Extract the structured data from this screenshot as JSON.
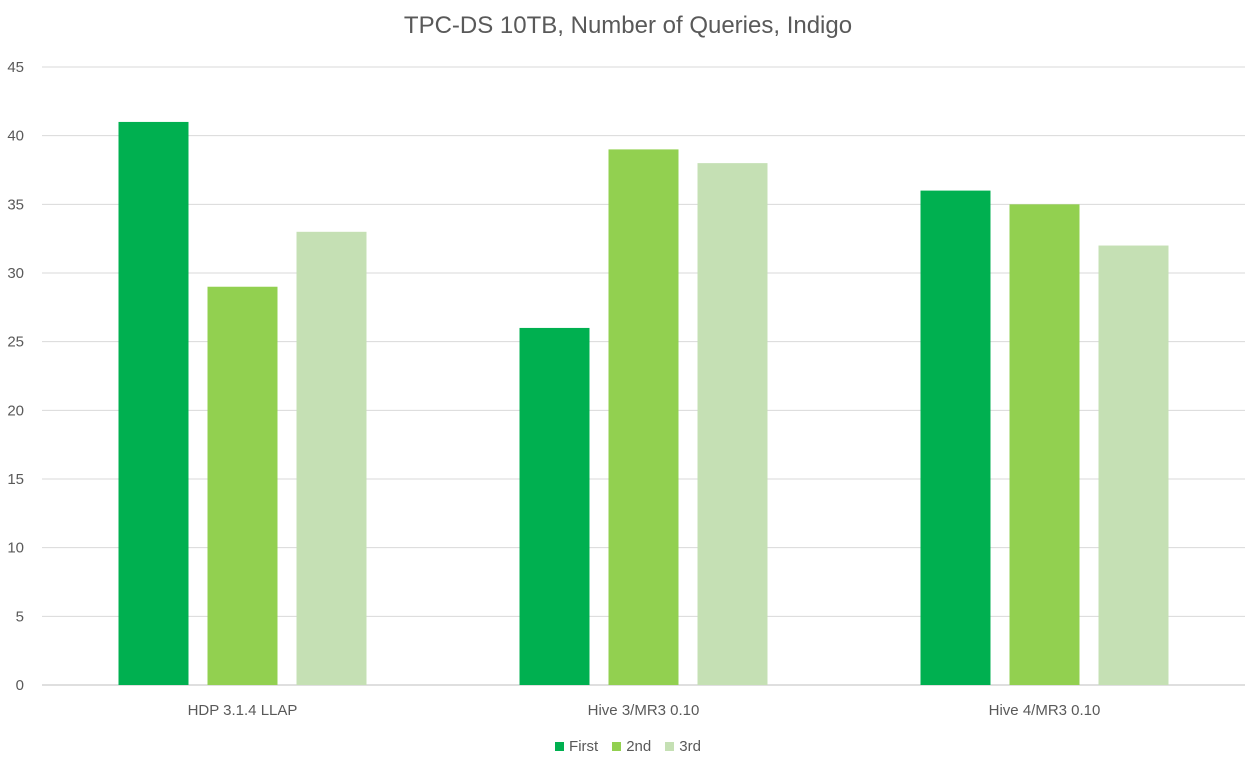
{
  "chart_data": {
    "type": "bar",
    "title": "TPC-DS 10TB, Number of Queries, Indigo",
    "xlabel": "",
    "ylabel": "",
    "categories": [
      "HDP 3.1.4 LLAP",
      "Hive 3/MR3 0.10",
      "Hive 4/MR3 0.10"
    ],
    "series": [
      {
        "name": "First",
        "values": [
          41,
          26,
          36
        ],
        "color": "#00b050"
      },
      {
        "name": "2nd",
        "values": [
          29,
          39,
          35
        ],
        "color": "#92d050"
      },
      {
        "name": "3rd",
        "values": [
          33,
          38,
          32
        ],
        "color": "#c5e0b4"
      }
    ],
    "ylim": [
      0,
      45
    ],
    "yticks": [
      "0",
      "5",
      "10",
      "15",
      "20",
      "25",
      "30",
      "35",
      "40",
      "45"
    ],
    "grid": true,
    "legend_position": "bottom"
  }
}
